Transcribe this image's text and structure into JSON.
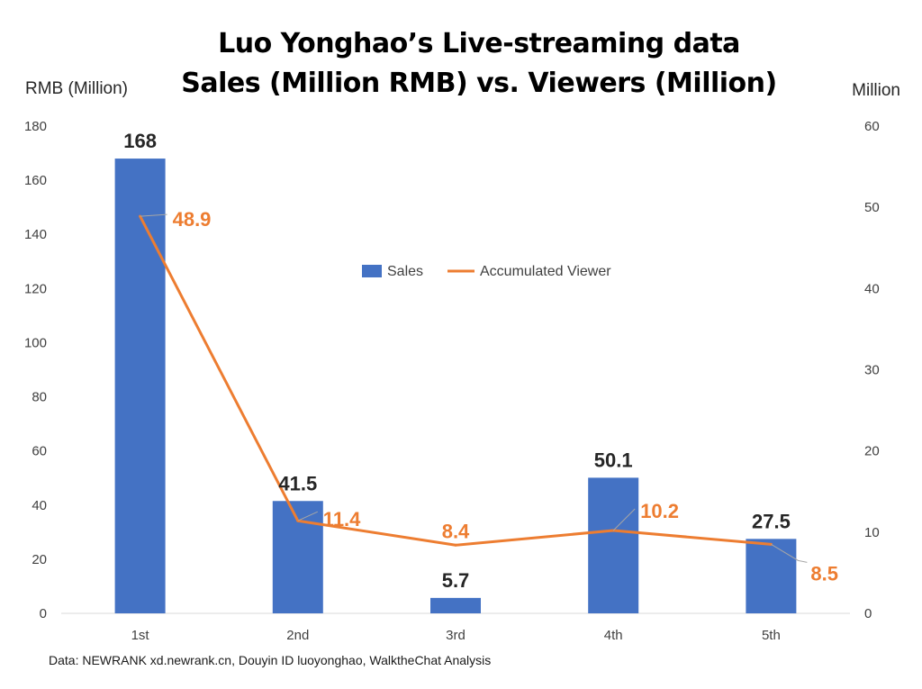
{
  "chart_data": {
    "type": "bar",
    "title_line1": "Luo Yonghao’s Live-streaming data",
    "title_line2": "Sales (Million RMB) vs. Viewers (Million)",
    "y_left_label": "RMB (Million)",
    "y_right_label": "Million",
    "y_left_ticks": [
      "0",
      "20",
      "40",
      "60",
      "80",
      "100",
      "120",
      "140",
      "160",
      "180"
    ],
    "y_right_ticks": [
      "0",
      "10",
      "20",
      "30",
      "40",
      "50",
      "60"
    ],
    "y_left_lim": [
      0,
      180
    ],
    "y_right_lim": [
      0,
      60
    ],
    "categories": [
      "1st",
      "2nd",
      "3rd",
      "4th",
      "5th"
    ],
    "series": [
      {
        "name": "Sales",
        "type": "bar",
        "axis": "left",
        "color": "#4472C4",
        "values": [
          168,
          41.5,
          5.7,
          50.1,
          27.5
        ],
        "labels": [
          "168",
          "41.5",
          "5.7",
          "50.1",
          "27.5"
        ]
      },
      {
        "name": "Accumulated Viewer",
        "type": "line",
        "axis": "right",
        "color": "#ED7D31",
        "values": [
          48.9,
          11.4,
          8.4,
          10.2,
          8.5
        ],
        "labels": [
          "48.9",
          "11.4",
          "8.4",
          "10.2",
          "8.5"
        ]
      }
    ],
    "legend_position": "top-right",
    "grid": false,
    "source": "Data: NEWRANK xd.newrank.cn, Douyin ID luoyonghao, WalktheChat Analysis"
  }
}
